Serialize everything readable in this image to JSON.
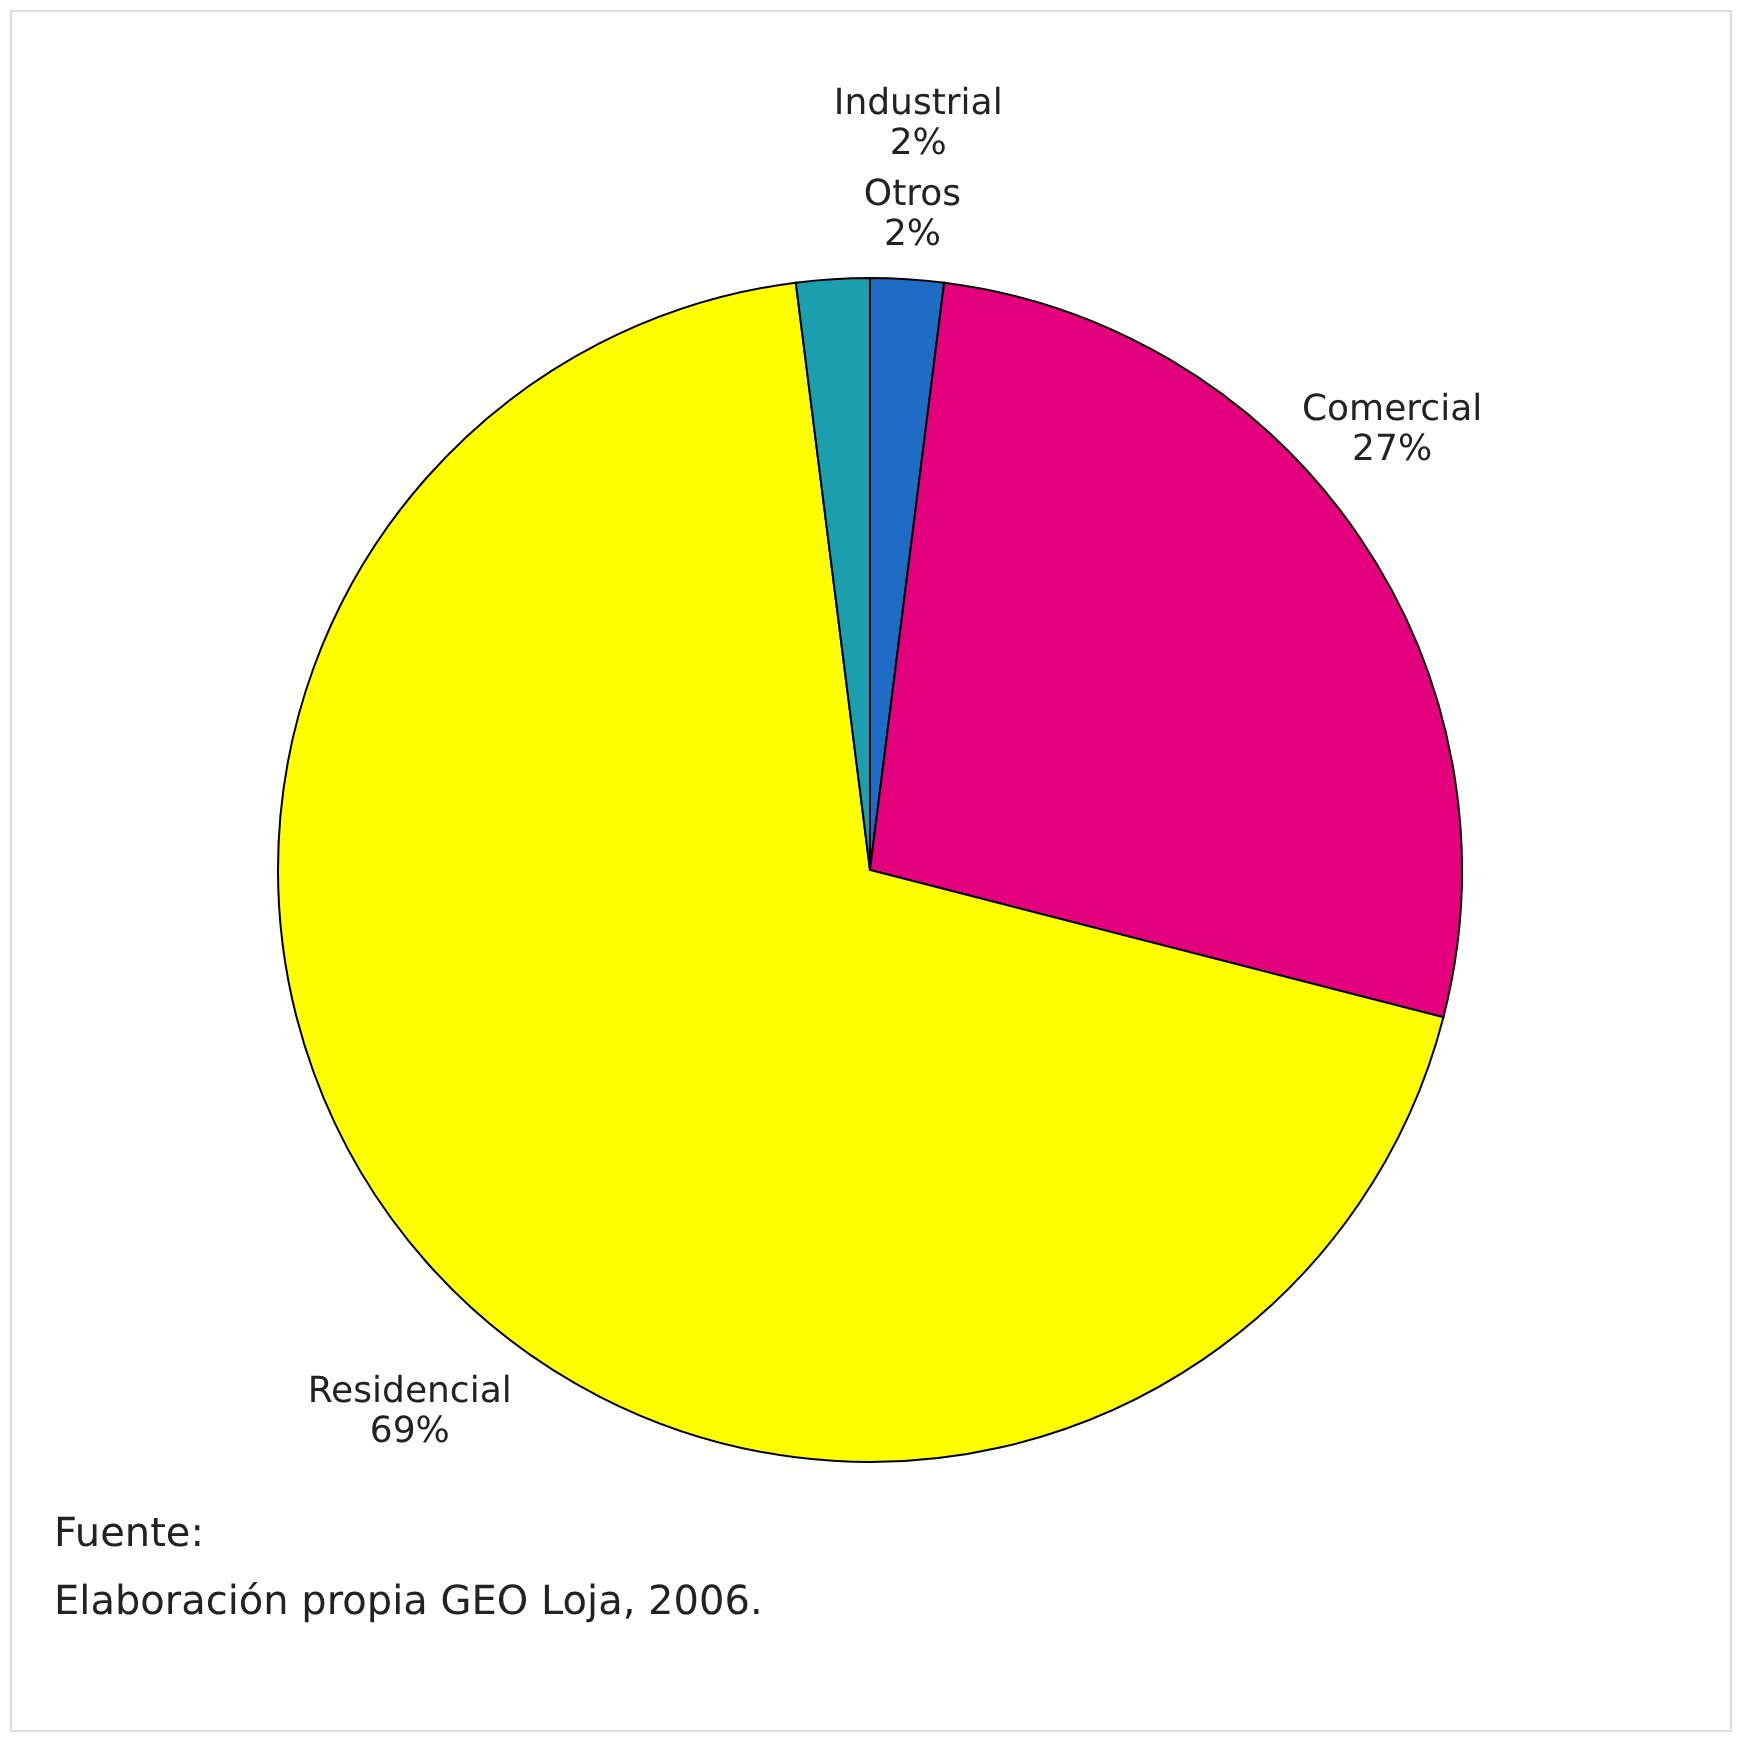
{
  "chart_data": {
    "type": "pie",
    "categories": [
      "Industrial",
      "Comercial",
      "Residencial",
      "Otros"
    ],
    "values": [
      2,
      27,
      69,
      2
    ],
    "value_labels": [
      "2%",
      "27%",
      "69%",
      "2%"
    ],
    "colors": [
      "#1f6cc4",
      "#e4007c",
      "#ffff00",
      "#1b9eae"
    ],
    "annotations": [
      "Fuente:\nElaboración propia GEO Loja, 2006."
    ]
  }
}
